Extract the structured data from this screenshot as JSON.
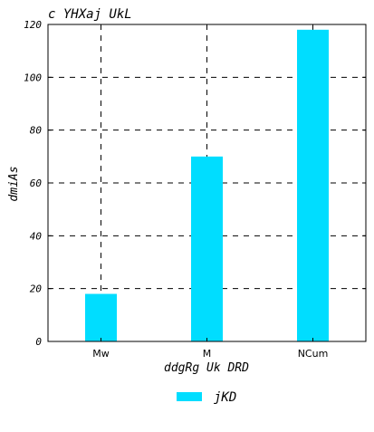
{
  "chart_data": {
    "type": "bar",
    "title": "c YHXaj UkL",
    "xlabel": "ddgRg Uk DRD",
    "ylabel": "dmiAs",
    "categories": [
      "Mw",
      "M",
      "NCum"
    ],
    "series": [
      {
        "name": "jKD",
        "values": [
          18,
          70,
          118
        ],
        "color": "#00DDFF"
      }
    ],
    "ylim": [
      0,
      120
    ],
    "yticks": [
      0,
      20,
      40,
      60,
      80,
      100,
      120
    ],
    "grid": true,
    "grid_style": "dashed",
    "legend_position": "bottom-center"
  }
}
